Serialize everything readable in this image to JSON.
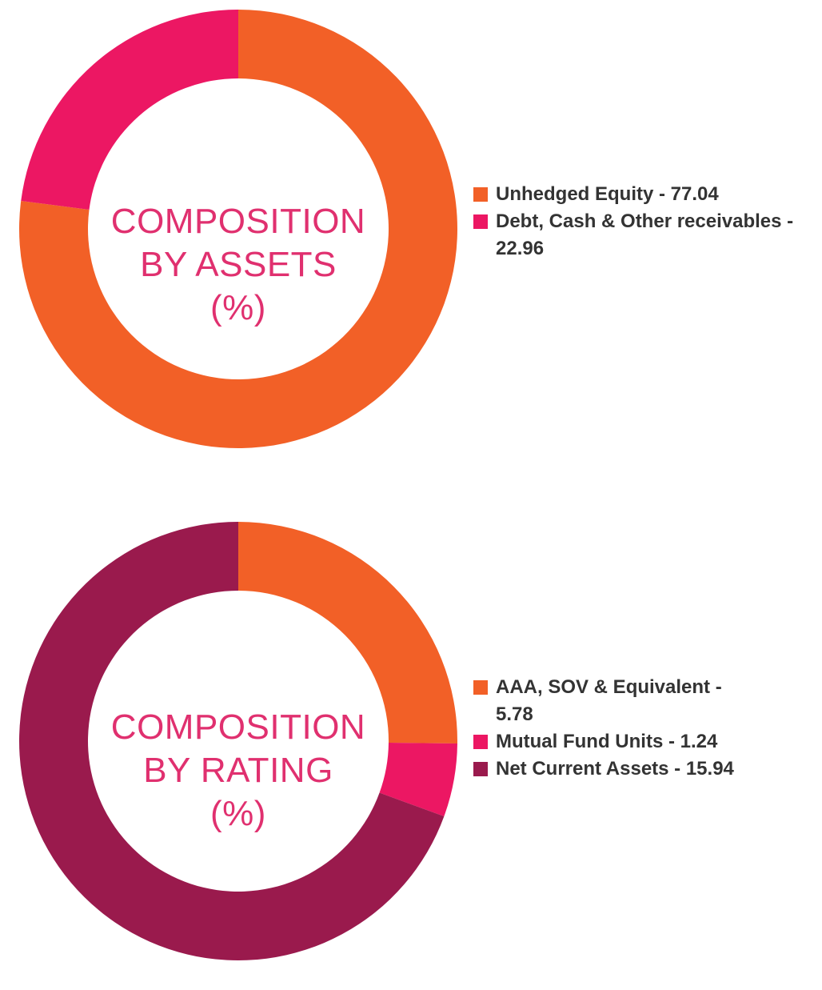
{
  "chart_data": [
    {
      "type": "pie",
      "title_lines": [
        "COMPOSITION",
        "BY ASSETS",
        "(%)"
      ],
      "slices": [
        {
          "label": "Unhedged Equity - 77.04",
          "value": 77.04,
          "color": "#f26027"
        },
        {
          "label": "Debt, Cash & Other receivables - 22.96",
          "value": 22.96,
          "color": "#ec1763"
        }
      ]
    },
    {
      "type": "pie",
      "title_lines": [
        "COMPOSITION",
        "BY RATING",
        "(%)"
      ],
      "slices": [
        {
          "label": "AAA, SOV & Equivalent - 5.78",
          "value": 5.78,
          "color": "#f26027"
        },
        {
          "label": "Mutual Fund Units - 1.24",
          "value": 1.24,
          "color": "#ec1763"
        },
        {
          "label": "Net Current Assets - 15.94",
          "value": 15.94,
          "color": "#9a1a4d"
        }
      ]
    }
  ]
}
